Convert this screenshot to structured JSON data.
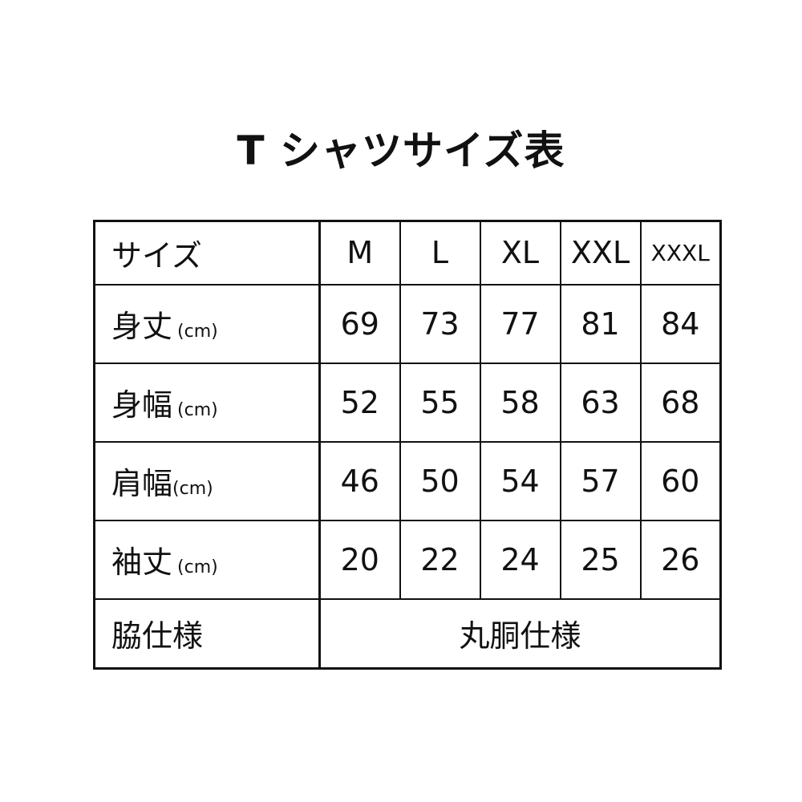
{
  "title": "T シャツサイズ表",
  "table": {
    "header_label": "サイズ",
    "sizes": [
      "M",
      "L",
      "XL",
      "XXL",
      "XXXL"
    ],
    "unit": "(cm)",
    "rows": [
      {
        "label": "身丈",
        "values": [
          "69",
          "73",
          "77",
          "81",
          "84"
        ]
      },
      {
        "label": "身幅",
        "values": [
          "52",
          "55",
          "58",
          "63",
          "68"
        ]
      },
      {
        "label": "肩幅",
        "values": [
          "46",
          "50",
          "54",
          "57",
          "60"
        ]
      },
      {
        "label": "袖丈",
        "values": [
          "20",
          "22",
          "24",
          "25",
          "26"
        ]
      }
    ],
    "footer_label": "脇仕様",
    "footer_value": "丸胴仕様"
  }
}
